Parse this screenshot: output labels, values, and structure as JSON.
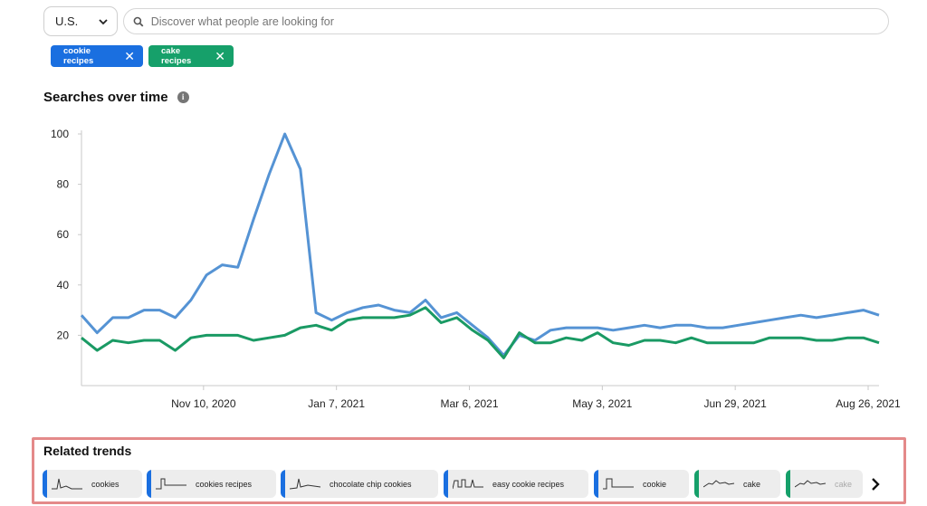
{
  "region": {
    "label": "U.S."
  },
  "search": {
    "placeholder": "Discover what people are looking for",
    "value": ""
  },
  "chips": [
    {
      "label": "cookie recipes",
      "color": "#1a6fe0"
    },
    {
      "label": "cake recipes",
      "color": "#16a06a"
    }
  ],
  "section": {
    "title": "Searches over time",
    "info_icon": "info-icon"
  },
  "chart_data": {
    "type": "line",
    "title": "Searches over time",
    "xlabel": "",
    "ylabel": "",
    "ylim": [
      0,
      100
    ],
    "yticks": [
      20,
      40,
      60,
      80,
      100
    ],
    "x_tick_labels": [
      "Nov 10, 2020",
      "Jan 7, 2021",
      "Mar 6, 2021",
      "May 3, 2021",
      "Jun 29, 2021",
      "Aug 26, 2021"
    ],
    "grid": false,
    "series": [
      {
        "name": "cookie recipes",
        "color": "#5593d4",
        "values": [
          28,
          21,
          27,
          27,
          30,
          30,
          27,
          34,
          44,
          48,
          47,
          66,
          84,
          100,
          86,
          29,
          26,
          29,
          31,
          32,
          30,
          29,
          34,
          27,
          29,
          24,
          19,
          12,
          20,
          18,
          22,
          23,
          23,
          23,
          22,
          23,
          24,
          23,
          24,
          24,
          23,
          23,
          24,
          25,
          26,
          27,
          28,
          27,
          28,
          29,
          30,
          28
        ]
      },
      {
        "name": "cake recipes",
        "color": "#1a9a64",
        "values": [
          19,
          14,
          18,
          17,
          18,
          18,
          14,
          19,
          20,
          20,
          20,
          18,
          19,
          20,
          23,
          24,
          22,
          26,
          27,
          27,
          27,
          28,
          31,
          25,
          27,
          22,
          18,
          11,
          21,
          17,
          17,
          19,
          18,
          21,
          17,
          16,
          18,
          18,
          17,
          19,
          17,
          17,
          17,
          17,
          19,
          19,
          19,
          18,
          18,
          19,
          19,
          17
        ]
      }
    ]
  },
  "related": {
    "title": "Related trends",
    "items": [
      {
        "label": "cookies",
        "color": "#1a6fe0"
      },
      {
        "label": "cookies recipes",
        "color": "#1a6fe0"
      },
      {
        "label": "chocolate chip cookies",
        "color": "#1a6fe0"
      },
      {
        "label": "easy cookie recipes",
        "color": "#1a6fe0"
      },
      {
        "label": "cookie",
        "color": "#1a6fe0"
      },
      {
        "label": "cake",
        "color": "#16a06a"
      },
      {
        "label": "cake",
        "color": "#16a06a"
      }
    ],
    "next_icon": "chevron-right-icon"
  }
}
